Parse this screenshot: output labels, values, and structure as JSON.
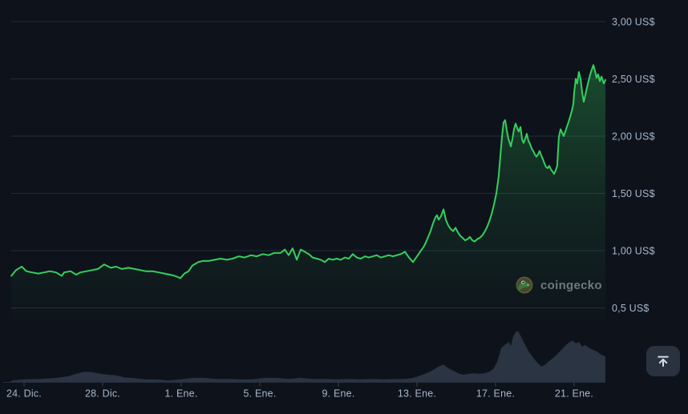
{
  "watermark": {
    "text": "coingecko",
    "logo_icon": "coingecko-gecko-icon"
  },
  "scroll_top_button": {
    "icon": "arrow-up-to-line-icon"
  },
  "colors": {
    "background": "#0e131b",
    "line_green": "#35cf5d",
    "gridline": "#212c3a",
    "axis_line": "#232e3c",
    "tick_mark": "#33404f",
    "axis_label": "#a6b6cb",
    "volume_bar": "#2a3442",
    "watermark_text": "#717d8b",
    "button_bg": "#2a3240",
    "button_icon": "#cfdceb",
    "logo_ring": "#5c5d3c",
    "logo_face": "#3c7d3e"
  },
  "chart_data": {
    "type": "area",
    "title": "",
    "currency": "US$",
    "grid": "horizontal",
    "legend": "none",
    "y_axis_side": "right",
    "ylim": [
      0.39,
      3.19
    ],
    "xlim_days": [
      -0.65,
      29.6
    ],
    "y_axis": {
      "ticks": [
        {
          "value": 3.0,
          "label": "3,00 US$"
        },
        {
          "value": 2.5,
          "label": "2,50 US$"
        },
        {
          "value": 2.0,
          "label": "2,00 US$"
        },
        {
          "value": 1.5,
          "label": "1,50 US$"
        },
        {
          "value": 1.0,
          "label": "1,00 US$"
        },
        {
          "value": 0.5,
          "label": "0,5 US$"
        }
      ]
    },
    "x_axis": {
      "ticks": [
        {
          "day": 0,
          "label": "24. Dic."
        },
        {
          "day": 4,
          "label": "28. Dic."
        },
        {
          "day": 8,
          "label": "1. Ene."
        },
        {
          "day": 12,
          "label": "5. Ene."
        },
        {
          "day": 16,
          "label": "9. Ene."
        },
        {
          "day": 20,
          "label": "13. Ene."
        },
        {
          "day": 24,
          "label": "17. Ene."
        },
        {
          "day": 28,
          "label": "21. Ene."
        }
      ]
    },
    "series": [
      {
        "name": "price_usd",
        "points": [
          [
            -0.65,
            0.78
          ],
          [
            -0.41,
            0.83
          ],
          [
            -0.12,
            0.86
          ],
          [
            0.12,
            0.82
          ],
          [
            0.41,
            0.81
          ],
          [
            0.73,
            0.8
          ],
          [
            1.02,
            0.81
          ],
          [
            1.31,
            0.82
          ],
          [
            1.63,
            0.81
          ],
          [
            1.92,
            0.78
          ],
          [
            2.04,
            0.81
          ],
          [
            2.37,
            0.82
          ],
          [
            2.65,
            0.79
          ],
          [
            2.86,
            0.81
          ],
          [
            3.18,
            0.82
          ],
          [
            3.47,
            0.83
          ],
          [
            3.76,
            0.84
          ],
          [
            4.08,
            0.88
          ],
          [
            4.41,
            0.85
          ],
          [
            4.69,
            0.86
          ],
          [
            4.98,
            0.84
          ],
          [
            5.31,
            0.85
          ],
          [
            5.63,
            0.84
          ],
          [
            5.92,
            0.83
          ],
          [
            6.2,
            0.82
          ],
          [
            6.53,
            0.82
          ],
          [
            6.86,
            0.81
          ],
          [
            7.14,
            0.8
          ],
          [
            7.43,
            0.79
          ],
          [
            7.67,
            0.78
          ],
          [
            7.96,
            0.76
          ],
          [
            8.16,
            0.8
          ],
          [
            8.37,
            0.82
          ],
          [
            8.57,
            0.87
          ],
          [
            8.86,
            0.9
          ],
          [
            9.1,
            0.91
          ],
          [
            9.39,
            0.91
          ],
          [
            9.71,
            0.92
          ],
          [
            10.0,
            0.93
          ],
          [
            10.33,
            0.92
          ],
          [
            10.61,
            0.93
          ],
          [
            10.94,
            0.95
          ],
          [
            11.22,
            0.94
          ],
          [
            11.55,
            0.96
          ],
          [
            11.84,
            0.95
          ],
          [
            12.16,
            0.97
          ],
          [
            12.45,
            0.96
          ],
          [
            12.73,
            0.98
          ],
          [
            13.06,
            0.98
          ],
          [
            13.27,
            1.01
          ],
          [
            13.47,
            0.96
          ],
          [
            13.67,
            1.02
          ],
          [
            13.88,
            0.92
          ],
          [
            14.08,
            1.01
          ],
          [
            14.29,
            0.99
          ],
          [
            14.49,
            0.97
          ],
          [
            14.69,
            0.94
          ],
          [
            14.9,
            0.93
          ],
          [
            15.1,
            0.92
          ],
          [
            15.31,
            0.9
          ],
          [
            15.51,
            0.93
          ],
          [
            15.71,
            0.92
          ],
          [
            15.92,
            0.93
          ],
          [
            16.12,
            0.92
          ],
          [
            16.33,
            0.94
          ],
          [
            16.53,
            0.93
          ],
          [
            16.73,
            0.97
          ],
          [
            16.94,
            0.94
          ],
          [
            17.14,
            0.93
          ],
          [
            17.35,
            0.95
          ],
          [
            17.55,
            0.94
          ],
          [
            17.76,
            0.95
          ],
          [
            17.96,
            0.96
          ],
          [
            18.16,
            0.94
          ],
          [
            18.37,
            0.95
          ],
          [
            18.57,
            0.96
          ],
          [
            18.78,
            0.95
          ],
          [
            18.98,
            0.96
          ],
          [
            19.18,
            0.97
          ],
          [
            19.39,
            0.99
          ],
          [
            19.59,
            0.94
          ],
          [
            19.8,
            0.9
          ],
          [
            19.92,
            0.93
          ],
          [
            20.08,
            0.97
          ],
          [
            20.2,
            1.0
          ],
          [
            20.33,
            1.03
          ],
          [
            20.45,
            1.07
          ],
          [
            20.57,
            1.12
          ],
          [
            20.69,
            1.17
          ],
          [
            20.82,
            1.24
          ],
          [
            20.94,
            1.29
          ],
          [
            21.02,
            1.31
          ],
          [
            21.1,
            1.27
          ],
          [
            21.22,
            1.3
          ],
          [
            21.35,
            1.36
          ],
          [
            21.47,
            1.27
          ],
          [
            21.59,
            1.22
          ],
          [
            21.71,
            1.19
          ],
          [
            21.84,
            1.17
          ],
          [
            21.96,
            1.2
          ],
          [
            22.08,
            1.16
          ],
          [
            22.2,
            1.13
          ],
          [
            22.33,
            1.11
          ],
          [
            22.45,
            1.09
          ],
          [
            22.57,
            1.1
          ],
          [
            22.69,
            1.12
          ],
          [
            22.82,
            1.09
          ],
          [
            22.94,
            1.08
          ],
          [
            23.06,
            1.1
          ],
          [
            23.18,
            1.11
          ],
          [
            23.31,
            1.13
          ],
          [
            23.43,
            1.16
          ],
          [
            23.55,
            1.2
          ],
          [
            23.67,
            1.25
          ],
          [
            23.8,
            1.32
          ],
          [
            23.92,
            1.4
          ],
          [
            24.04,
            1.5
          ],
          [
            24.16,
            1.65
          ],
          [
            24.24,
            1.82
          ],
          [
            24.33,
            2.0
          ],
          [
            24.41,
            2.12
          ],
          [
            24.49,
            2.14
          ],
          [
            24.57,
            2.05
          ],
          [
            24.65,
            1.98
          ],
          [
            24.78,
            1.91
          ],
          [
            24.86,
            1.98
          ],
          [
            24.94,
            2.06
          ],
          [
            25.02,
            2.11
          ],
          [
            25.1,
            2.07
          ],
          [
            25.18,
            2.04
          ],
          [
            25.27,
            2.08
          ],
          [
            25.35,
            1.97
          ],
          [
            25.43,
            1.94
          ],
          [
            25.51,
            1.98
          ],
          [
            25.59,
            2.02
          ],
          [
            25.67,
            1.96
          ],
          [
            25.76,
            1.93
          ],
          [
            25.84,
            1.89
          ],
          [
            25.92,
            1.87
          ],
          [
            26.0,
            1.84
          ],
          [
            26.08,
            1.82
          ],
          [
            26.16,
            1.84
          ],
          [
            26.24,
            1.87
          ],
          [
            26.33,
            1.83
          ],
          [
            26.41,
            1.8
          ],
          [
            26.49,
            1.76
          ],
          [
            26.57,
            1.73
          ],
          [
            26.65,
            1.72
          ],
          [
            26.73,
            1.74
          ],
          [
            26.82,
            1.71
          ],
          [
            26.9,
            1.69
          ],
          [
            26.98,
            1.67
          ],
          [
            27.06,
            1.7
          ],
          [
            27.14,
            1.74
          ],
          [
            27.22,
            1.99
          ],
          [
            27.31,
            2.06
          ],
          [
            27.39,
            2.03
          ],
          [
            27.47,
            2.0
          ],
          [
            27.55,
            2.04
          ],
          [
            27.63,
            2.08
          ],
          [
            27.71,
            2.12
          ],
          [
            27.8,
            2.17
          ],
          [
            27.88,
            2.22
          ],
          [
            27.96,
            2.28
          ],
          [
            28.0,
            2.38
          ],
          [
            28.08,
            2.5
          ],
          [
            28.16,
            2.46
          ],
          [
            28.24,
            2.56
          ],
          [
            28.33,
            2.5
          ],
          [
            28.41,
            2.38
          ],
          [
            28.49,
            2.3
          ],
          [
            28.57,
            2.36
          ],
          [
            28.65,
            2.42
          ],
          [
            28.73,
            2.48
          ],
          [
            28.82,
            2.54
          ],
          [
            28.9,
            2.58
          ],
          [
            28.98,
            2.62
          ],
          [
            29.06,
            2.57
          ],
          [
            29.14,
            2.51
          ],
          [
            29.22,
            2.54
          ],
          [
            29.31,
            2.48
          ],
          [
            29.39,
            2.52
          ],
          [
            29.51,
            2.46
          ],
          [
            29.59,
            2.49
          ]
        ]
      }
    ],
    "volume_relative": [
      [
        -0.65,
        0.03
      ],
      [
        0,
        0.05
      ],
      [
        0.82,
        0.06
      ],
      [
        1.63,
        0.08
      ],
      [
        2.24,
        0.11
      ],
      [
        2.65,
        0.16
      ],
      [
        3.06,
        0.2
      ],
      [
        3.47,
        0.19
      ],
      [
        3.88,
        0.16
      ],
      [
        4.29,
        0.14
      ],
      [
        4.69,
        0.13
      ],
      [
        5.1,
        0.09
      ],
      [
        5.51,
        0.08
      ],
      [
        6.12,
        0.05
      ],
      [
        6.73,
        0.05
      ],
      [
        7.35,
        0.03
      ],
      [
        7.96,
        0.05
      ],
      [
        8.57,
        0.08
      ],
      [
        9.18,
        0.08
      ],
      [
        9.8,
        0.06
      ],
      [
        10.41,
        0.06
      ],
      [
        11.02,
        0.05
      ],
      [
        11.63,
        0.05
      ],
      [
        12.24,
        0.08
      ],
      [
        12.86,
        0.08
      ],
      [
        13.47,
        0.06
      ],
      [
        14.08,
        0.08
      ],
      [
        14.69,
        0.06
      ],
      [
        15.31,
        0.06
      ],
      [
        15.92,
        0.05
      ],
      [
        16.53,
        0.06
      ],
      [
        17.14,
        0.05
      ],
      [
        17.76,
        0.06
      ],
      [
        18.37,
        0.05
      ],
      [
        18.98,
        0.06
      ],
      [
        19.39,
        0.06
      ],
      [
        19.8,
        0.08
      ],
      [
        20.2,
        0.13
      ],
      [
        20.61,
        0.19
      ],
      [
        20.9,
        0.25
      ],
      [
        21.14,
        0.31
      ],
      [
        21.35,
        0.34
      ],
      [
        21.55,
        0.28
      ],
      [
        21.84,
        0.22
      ],
      [
        22.12,
        0.17
      ],
      [
        22.37,
        0.14
      ],
      [
        22.65,
        0.16
      ],
      [
        22.94,
        0.17
      ],
      [
        23.18,
        0.16
      ],
      [
        23.43,
        0.17
      ],
      [
        23.67,
        0.2
      ],
      [
        23.88,
        0.25
      ],
      [
        24.08,
        0.39
      ],
      [
        24.29,
        0.66
      ],
      [
        24.49,
        0.73
      ],
      [
        24.69,
        0.78
      ],
      [
        24.78,
        0.7
      ],
      [
        24.9,
        0.89
      ],
      [
        25.02,
        0.97
      ],
      [
        25.14,
        1.0
      ],
      [
        25.22,
        0.94
      ],
      [
        25.39,
        0.81
      ],
      [
        25.55,
        0.69
      ],
      [
        25.71,
        0.58
      ],
      [
        25.92,
        0.47
      ],
      [
        26.12,
        0.38
      ],
      [
        26.33,
        0.3
      ],
      [
        26.53,
        0.34
      ],
      [
        26.73,
        0.41
      ],
      [
        26.94,
        0.47
      ],
      [
        27.18,
        0.56
      ],
      [
        27.43,
        0.66
      ],
      [
        27.67,
        0.75
      ],
      [
        27.92,
        0.81
      ],
      [
        28.08,
        0.75
      ],
      [
        28.24,
        0.78
      ],
      [
        28.41,
        0.69
      ],
      [
        28.57,
        0.72
      ],
      [
        28.78,
        0.66
      ],
      [
        28.98,
        0.63
      ],
      [
        29.18,
        0.59
      ],
      [
        29.39,
        0.53
      ],
      [
        29.59,
        0.5
      ]
    ]
  }
}
